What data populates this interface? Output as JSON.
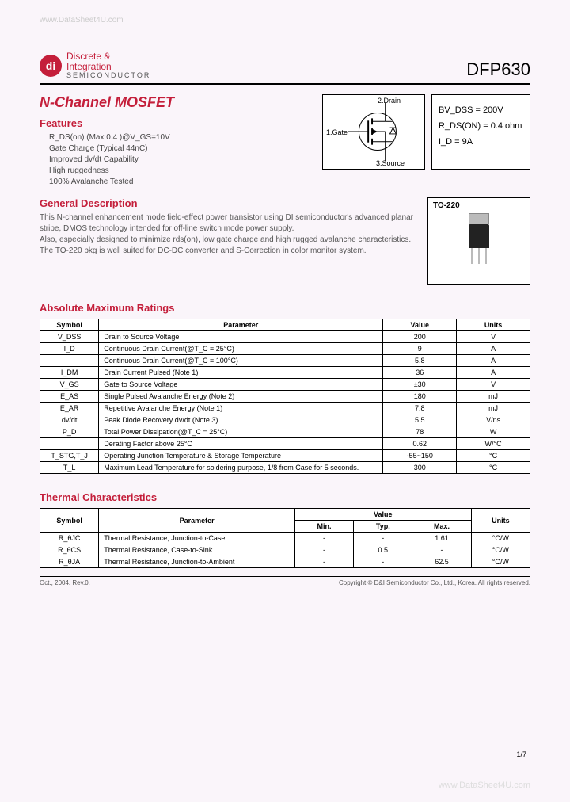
{
  "watermark_top": "www.DataSheet4U.com",
  "watermark_bottom": "www.DataSheet4U.com",
  "logo": {
    "mark": "di",
    "line1": "Discrete &",
    "line2": "Integration",
    "line3": "SEMICONDUCTOR"
  },
  "part_number": "DFP630",
  "main_title": "N-Channel MOSFET",
  "features_heading": "Features",
  "features": [
    "R_DS(on) (Max 0.4   )@V_GS=10V",
    "Gate Charge (Typical 44nC)",
    "Improved dv/dt Capability",
    "High ruggedness",
    "100% Avalanche Tested"
  ],
  "symbol_labels": {
    "drain": "2.Drain",
    "gate": "1.Gate",
    "source": "3.Source"
  },
  "key_specs": {
    "bvdss": "BV_DSS = 200V",
    "rdson": "R_DS(ON) = 0.4 ohm",
    "id": "I_D = 9A"
  },
  "gen_desc_heading": "General Description",
  "gen_desc_text": "This N-channel enhancement mode field-effect power transistor using DI semiconductor's advanced planar stripe, DMOS technology intended for off-line switch mode power supply.\nAlso, especially designed to minimize rds(on), low gate charge and high rugged avalanche characteristics.\nThe TO-220 pkg is well suited for DC-DC converter and S-Correction in color monitor system.",
  "package_label": "TO-220",
  "abs_max_heading": "Absolute Maximum Ratings",
  "abs_max": {
    "columns": [
      "Symbol",
      "Parameter",
      "Value",
      "Units"
    ],
    "col_widths": [
      "12%",
      "58%",
      "15%",
      "15%"
    ],
    "rows": [
      [
        "V_DSS",
        "Drain to Source Voltage",
        "200",
        "V"
      ],
      [
        "I_D",
        "Continuous Drain Current(@T_C = 25°C)",
        "9",
        "A"
      ],
      [
        "",
        "Continuous Drain Current(@T_C = 100°C)",
        "5.8",
        "A"
      ],
      [
        "I_DM",
        "Drain Current Pulsed                                       (Note 1)",
        "36",
        "A"
      ],
      [
        "V_GS",
        "Gate to Source Voltage",
        "±30",
        "V"
      ],
      [
        "E_AS",
        "Single Pulsed Avalanche Energy                    (Note 2)",
        "180",
        "mJ"
      ],
      [
        "E_AR",
        "Repetitive Avalanche Energy                           (Note 1)",
        "7.8",
        "mJ"
      ],
      [
        "dv/dt",
        "Peak Diode Recovery dv/dt                              (Note 3)",
        "5.5",
        "V/ns"
      ],
      [
        "P_D",
        "Total Power Dissipation(@T_C = 25°C)",
        "78",
        "W"
      ],
      [
        "",
        "Derating Factor above 25°C",
        "0.62",
        "W/°C"
      ],
      [
        "T_STG,T_J",
        "Operating Junction Temperature & Storage Temperature",
        "-55~150",
        "°C"
      ],
      [
        "T_L",
        "Maximum Lead Temperature for soldering purpose, 1/8 from Case for 5 seconds.",
        "300",
        "°C"
      ]
    ]
  },
  "thermal_heading": "Thermal Characteristics",
  "thermal": {
    "columns": [
      "Symbol",
      "Parameter",
      "Min.",
      "Typ.",
      "Max.",
      "Units"
    ],
    "col_widths": [
      "12%",
      "40%",
      "12%",
      "12%",
      "12%",
      "12%"
    ],
    "rows": [
      [
        "R_θJC",
        "Thermal Resistance, Junction-to-Case",
        "-",
        "-",
        "1.61",
        "°C/W"
      ],
      [
        "R_θCS",
        "Thermal Resistance, Case-to-Sink",
        "-",
        "0.5",
        "-",
        "°C/W"
      ],
      [
        "R_θJA",
        "Thermal Resistance, Junction-to-Ambient",
        "-",
        "-",
        "62.5",
        "°C/W"
      ]
    ]
  },
  "page_number": "1/7",
  "footer_rev": "Oct., 2004. Rev.0.",
  "footer_copyright": "Copyright © D&I Semiconductor Co., Ltd., Korea. All rights reserved.",
  "colors": {
    "brand_red": "#c41e3a",
    "page_bg": "#faf5fa",
    "text": "#444"
  }
}
